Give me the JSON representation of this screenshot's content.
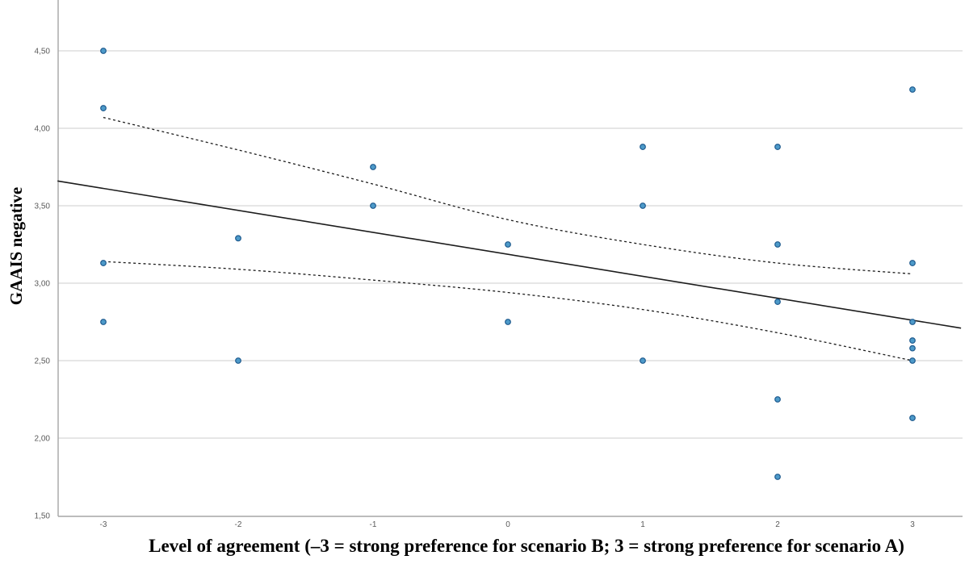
{
  "figure": {
    "background": "#ffffff"
  },
  "chart_data": {
    "type": "scatter",
    "title": "",
    "xlabel": "Level of agreement (–3 = strong preference for scenario B; 3 = strong preference for scenario A)",
    "ylabel": "GAAIS negative",
    "xlim": [
      -3.34,
      3.36
    ],
    "ylim": [
      1.5,
      4.83
    ],
    "grid": "horizontal-only",
    "legend": "none",
    "x_ticks": [
      {
        "value": -3,
        "label": "-3"
      },
      {
        "value": -2,
        "label": "-2"
      },
      {
        "value": -1,
        "label": "-1"
      },
      {
        "value": 0,
        "label": "0"
      },
      {
        "value": 1,
        "label": "1"
      },
      {
        "value": 2,
        "label": "2"
      },
      {
        "value": 3,
        "label": "3"
      }
    ],
    "y_ticks": [
      {
        "value": 4.5,
        "label": "4,50"
      },
      {
        "value": 4.0,
        "label": "4,00"
      },
      {
        "value": 3.5,
        "label": "3,50"
      },
      {
        "value": 3.0,
        "label": "3,00"
      },
      {
        "value": 2.5,
        "label": "2,50"
      },
      {
        "value": 2.0,
        "label": "2,00"
      },
      {
        "value": 1.5,
        "label": "1,50"
      }
    ],
    "points": [
      [
        -3,
        4.5
      ],
      [
        -3,
        4.13
      ],
      [
        -3,
        3.13
      ],
      [
        -3,
        2.75
      ],
      [
        -2,
        3.29
      ],
      [
        -2,
        2.5
      ],
      [
        -1,
        3.75
      ],
      [
        -1,
        3.5
      ],
      [
        0,
        3.25
      ],
      [
        0,
        2.75
      ],
      [
        1,
        3.88
      ],
      [
        1,
        3.5
      ],
      [
        1,
        2.5
      ],
      [
        2,
        3.88
      ],
      [
        2,
        3.25
      ],
      [
        2,
        2.88
      ],
      [
        2,
        2.25
      ],
      [
        2,
        1.75
      ],
      [
        3,
        4.25
      ],
      [
        3,
        3.13
      ],
      [
        3,
        2.75
      ],
      [
        3,
        2.63
      ],
      [
        3,
        2.58
      ],
      [
        3,
        2.5
      ],
      [
        3,
        2.13
      ]
    ],
    "fit_line": {
      "x1": -3.34,
      "y1": 3.66,
      "x2": 3.36,
      "y2": 2.71
    },
    "ci_upper": [
      [
        -3,
        4.07
      ],
      [
        -2,
        3.86
      ],
      [
        -1,
        3.64
      ],
      [
        0,
        3.41
      ],
      [
        1,
        3.25
      ],
      [
        2,
        3.13
      ],
      [
        3,
        3.06
      ]
    ],
    "ci_lower": [
      [
        -3,
        3.14
      ],
      [
        -2,
        3.09
      ],
      [
        -1,
        3.02
      ],
      [
        0,
        2.94
      ],
      [
        1,
        2.83
      ],
      [
        2,
        2.68
      ],
      [
        3,
        2.5
      ]
    ],
    "colors": {
      "point_fill": "#4d9ac9",
      "point_stroke": "#1e5a8e",
      "fit_line": "#1c1c1c",
      "ci_line": "#1c1c1c",
      "grid": "#d8d8d8",
      "axis": "#a6a6a6",
      "tick_label": "#5a5a5a",
      "title": "#000000"
    }
  }
}
